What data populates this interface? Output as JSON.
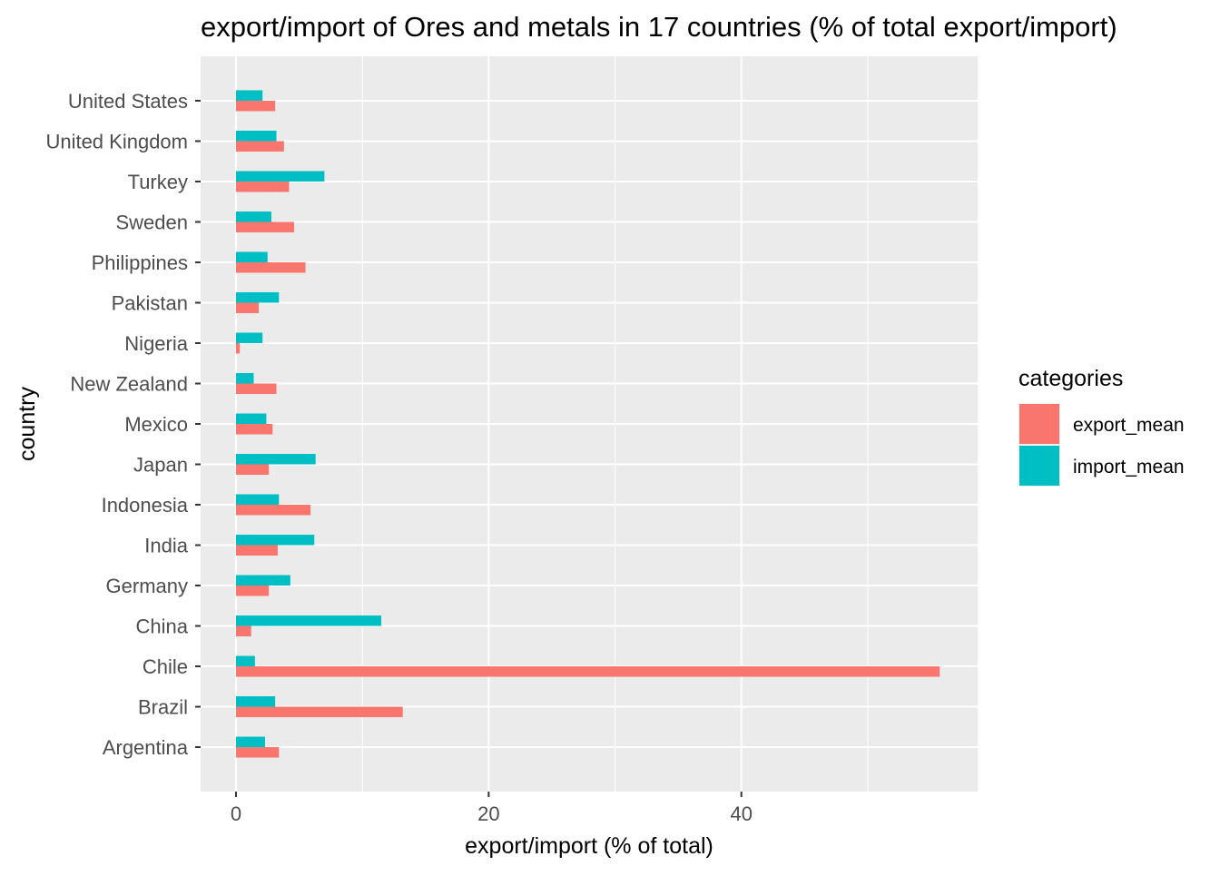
{
  "chart_data": {
    "type": "bar",
    "orientation": "horizontal",
    "title": "export/import of Ores and metals in 17 countries (% of total export/import)",
    "xlabel": "export/import (% of total)",
    "ylabel": "country",
    "xlim": [
      -2.8,
      58.7
    ],
    "xticks": [
      0,
      20,
      40
    ],
    "grid": true,
    "categories": [
      "Argentina",
      "Brazil",
      "Chile",
      "China",
      "Germany",
      "India",
      "Indonesia",
      "Japan",
      "Mexico",
      "New Zealand",
      "Nigeria",
      "Pakistan",
      "Philippines",
      "Sweden",
      "Turkey",
      "United Kingdom",
      "United States"
    ],
    "series": [
      {
        "name": "export_mean",
        "color": "#F8766D",
        "values": [
          3.4,
          13.2,
          55.7,
          1.2,
          2.6,
          3.3,
          5.9,
          2.6,
          2.9,
          3.2,
          0.3,
          1.8,
          5.5,
          4.6,
          4.2,
          3.8,
          3.1
        ]
      },
      {
        "name": "import_mean",
        "color": "#00BFC4",
        "values": [
          2.3,
          3.1,
          1.5,
          11.5,
          4.3,
          6.2,
          3.4,
          6.3,
          2.4,
          1.4,
          2.1,
          3.4,
          2.5,
          2.8,
          7.0,
          3.2,
          2.1
        ]
      }
    ],
    "legend": {
      "title": "categories",
      "position": "right"
    },
    "panel_background": "#EBEBEB",
    "grid_color": "#FFFFFF"
  }
}
